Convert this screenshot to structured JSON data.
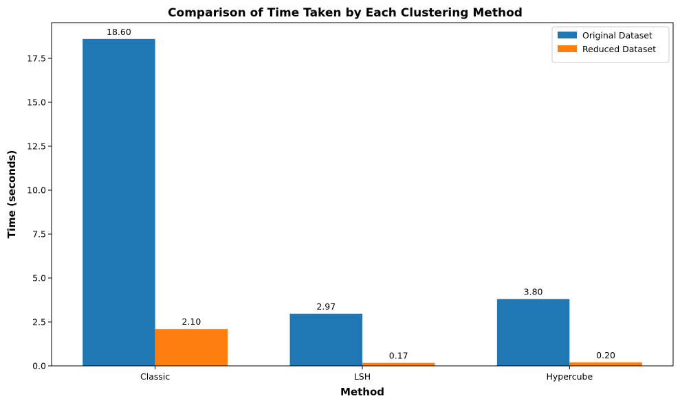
{
  "chart_data": {
    "type": "bar",
    "title": "Comparison of Time Taken by Each Clustering Method",
    "xlabel": "Method",
    "ylabel": "Time (seconds)",
    "categories": [
      "Classic",
      "LSH",
      "Hypercube"
    ],
    "series": [
      {
        "name": "Original Dataset",
        "values": [
          18.6,
          2.97,
          3.8
        ],
        "labels": [
          "18.60",
          "2.97",
          "3.80"
        ],
        "color": "#1f77b4"
      },
      {
        "name": "Reduced Dataset",
        "values": [
          2.1,
          0.17,
          0.2
        ],
        "labels": [
          "2.10",
          "0.17",
          "0.20"
        ],
        "color": "#ff7f0e"
      }
    ],
    "ylim": [
      0,
      19.53
    ],
    "yticks": [
      0.0,
      2.5,
      5.0,
      7.5,
      10.0,
      12.5,
      15.0,
      17.5
    ],
    "ytick_labels": [
      "0.0",
      "2.5",
      "5.0",
      "7.5",
      "10.0",
      "12.5",
      "15.0",
      "17.5"
    ],
    "grid": false,
    "legend_position": "top-right"
  }
}
